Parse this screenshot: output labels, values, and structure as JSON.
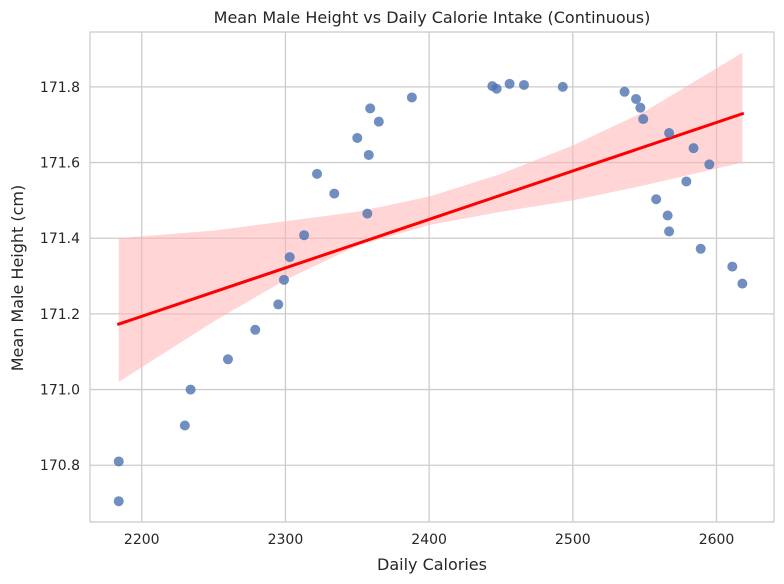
{
  "chart_data": {
    "type": "scatter",
    "title": "Mean Male Height vs Daily Calorie Intake (Continuous)",
    "xlabel": "Daily Calories",
    "ylabel": "Mean Male Height (cm)",
    "xlim": [
      2164,
      2640
    ],
    "ylim": [
      170.65,
      171.945
    ],
    "xticks": [
      2200,
      2300,
      2400,
      2500,
      2600
    ],
    "yticks": [
      170.8,
      171.0,
      171.2,
      171.4,
      171.6,
      171.8
    ],
    "xtick_labels": [
      "2200",
      "2300",
      "2400",
      "2500",
      "2600"
    ],
    "ytick_labels": [
      "170.8",
      "171.0",
      "171.2",
      "171.4",
      "171.6",
      "171.8"
    ],
    "grid": true,
    "colors": {
      "points": "#4c72b0",
      "regression_line": "#ff0000",
      "confidence_band": "#ffb3b3",
      "grid": "#cccccc",
      "spine": "#cccccc"
    },
    "series": [
      {
        "points": [
          [
            2184,
            170.81
          ],
          [
            2184,
            170.705
          ],
          [
            2230,
            170.905
          ],
          [
            2234,
            171.0
          ],
          [
            2260,
            171.08
          ],
          [
            2279,
            171.158
          ],
          [
            2295,
            171.225
          ],
          [
            2299,
            171.29
          ],
          [
            2303,
            171.35
          ],
          [
            2313,
            171.408
          ],
          [
            2322,
            171.57
          ],
          [
            2334,
            171.518
          ],
          [
            2350,
            171.665
          ],
          [
            2357,
            171.465
          ],
          [
            2358,
            171.62
          ],
          [
            2359,
            171.743
          ],
          [
            2365,
            171.708
          ],
          [
            2388,
            171.772
          ],
          [
            2444,
            171.802
          ],
          [
            2447,
            171.795
          ],
          [
            2456,
            171.808
          ],
          [
            2466,
            171.805
          ],
          [
            2493,
            171.8
          ],
          [
            2536,
            171.787
          ],
          [
            2544,
            171.768
          ],
          [
            2547,
            171.745
          ],
          [
            2549,
            171.715
          ],
          [
            2558,
            171.503
          ],
          [
            2566,
            171.46
          ],
          [
            2567,
            171.678
          ],
          [
            2567,
            171.418
          ],
          [
            2579,
            171.55
          ],
          [
            2584,
            171.638
          ],
          [
            2589,
            171.372
          ],
          [
            2595,
            171.595
          ],
          [
            2611,
            171.325
          ],
          [
            2618,
            171.28
          ]
        ]
      }
    ],
    "regression": {
      "x": [
        2184,
        2618
      ],
      "y": [
        171.173,
        171.729
      ]
    },
    "confidence_band": {
      "x": [
        2184,
        2250,
        2300,
        2350,
        2400,
        2450,
        2500,
        2550,
        2618
      ],
      "upper": [
        171.4,
        171.42,
        171.445,
        171.47,
        171.51,
        171.57,
        171.645,
        171.735,
        171.89
      ],
      "lower": [
        171.02,
        171.18,
        171.29,
        171.38,
        171.435,
        171.47,
        171.5,
        171.54,
        171.6
      ]
    }
  }
}
